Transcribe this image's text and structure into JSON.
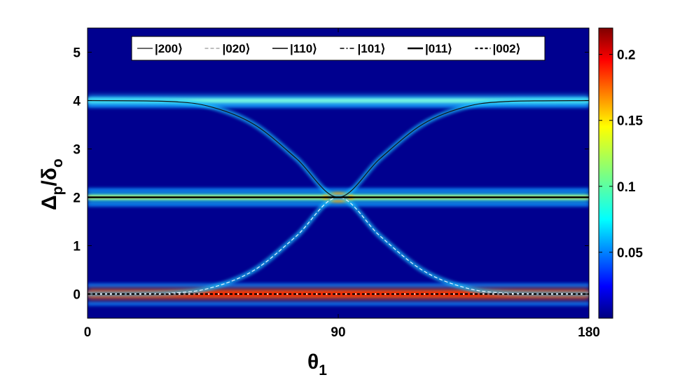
{
  "chart_data": {
    "type": "heatmap",
    "x_range": [
      0,
      180
    ],
    "y_range": [
      -0.5,
      5.5
    ],
    "x_ticks": [
      "0",
      "90",
      "180"
    ],
    "x_tick_values": [
      0,
      90,
      180
    ],
    "y_ticks": [
      "0",
      "1",
      "2",
      "3",
      "4",
      "5"
    ],
    "y_tick_values": [
      0,
      1,
      2,
      3,
      4,
      5
    ],
    "xlabel": "θ",
    "xlabel_sub": "1",
    "ylabel_main": "Δ",
    "ylabel_sub1": "p",
    "ylabel_mid": "/δ",
    "ylabel_sub2": "o",
    "colorbar": {
      "range": [
        0,
        0.22
      ],
      "ticks": [
        "0.05",
        "0.1",
        "0.15",
        "0.2"
      ],
      "tick_values": [
        0.05,
        0.1,
        0.15,
        0.2
      ],
      "colormap": "jet"
    },
    "legend": {
      "placement": "top-center",
      "entries": [
        {
          "label": "|200⟩",
          "style": "thin-solid"
        },
        {
          "label": "|020⟩",
          "style": "thin-dashed"
        },
        {
          "label": "|110⟩",
          "style": "solid"
        },
        {
          "label": "|101⟩",
          "style": "dash-dot"
        },
        {
          "label": "|011⟩",
          "style": "thick-solid"
        },
        {
          "label": "|002⟩",
          "style": "thick-dashed"
        }
      ]
    },
    "series": [
      {
        "name": "|200⟩",
        "x": [
          0,
          30,
          45,
          60,
          75,
          90,
          105,
          120,
          135,
          150,
          180
        ],
        "y": [
          4,
          3.98,
          3.86,
          3.5,
          2.8,
          2,
          2.8,
          3.5,
          3.86,
          3.98,
          4
        ]
      },
      {
        "name": "|020⟩",
        "x": [
          0,
          30,
          45,
          60,
          75,
          90,
          105,
          120,
          135,
          150,
          180
        ],
        "y": [
          0,
          0.02,
          0.14,
          0.5,
          1.2,
          2,
          1.2,
          0.5,
          0.14,
          0.02,
          0
        ]
      },
      {
        "name": "|110⟩",
        "x": [
          0,
          90,
          180
        ],
        "y": [
          2,
          2,
          2
        ]
      },
      {
        "name": "|101⟩",
        "x": [
          0,
          90,
          180
        ],
        "y": [
          0,
          0,
          0
        ]
      },
      {
        "name": "|011⟩",
        "x": [
          0,
          90,
          180
        ],
        "y": [
          2,
          2,
          2
        ]
      },
      {
        "name": "|002⟩",
        "x": [
          0,
          90,
          180
        ],
        "y": [
          0,
          0,
          0
        ]
      }
    ],
    "bright_bands": [
      {
        "y": 4,
        "peak": 0.1,
        "sidebands": [
          3.9
        ]
      },
      {
        "y": 2,
        "peak": 0.2,
        "sidebands": [
          2.15,
          1.85
        ]
      },
      {
        "y": 0,
        "peak": 0.22,
        "sidebands": [
          0.18,
          -0.2
        ]
      }
    ]
  }
}
